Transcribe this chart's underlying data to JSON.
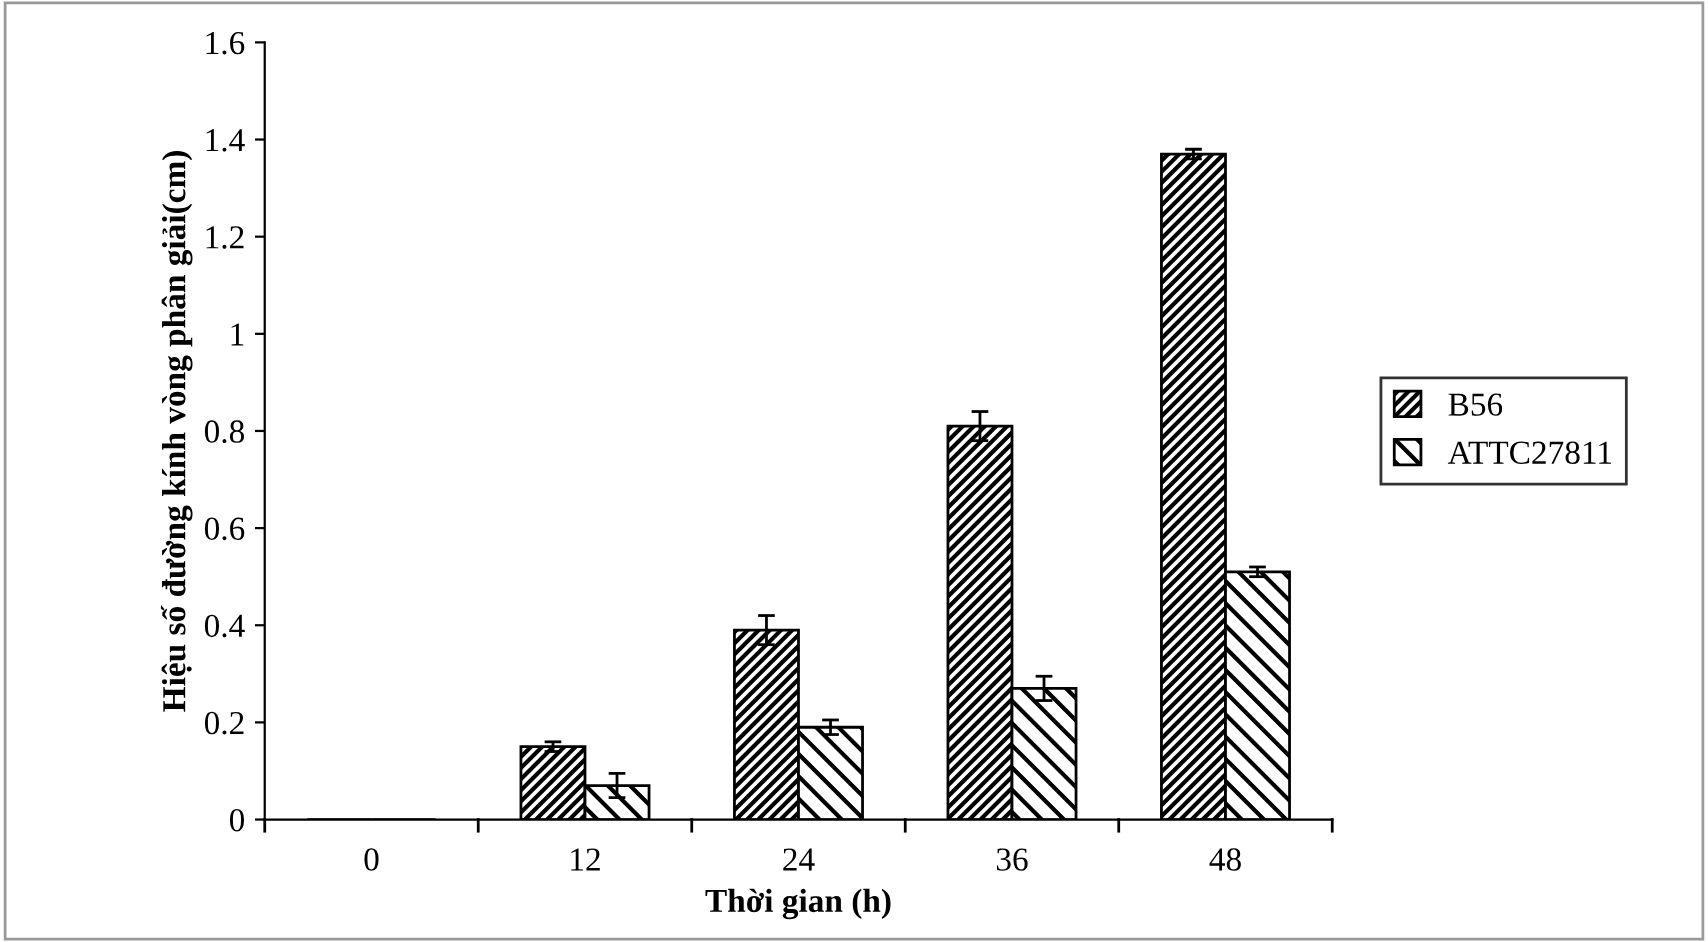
{
  "chart_data": {
    "type": "bar",
    "xlabel": "Thời gian (h)",
    "ylabel": "Hiệu số đường kính vòng phân giải(cm)",
    "categories": [
      "0",
      "12",
      "24",
      "36",
      "48"
    ],
    "series": [
      {
        "name": "B56",
        "color": "#000000",
        "values": [
          0,
          0.15,
          0.39,
          0.81,
          1.37
        ],
        "errors": [
          null,
          0.01,
          0.03,
          0.03,
          0.01
        ]
      },
      {
        "name": "ATTC27811",
        "color": "#000000",
        "values": [
          0,
          0.07,
          0.19,
          0.27,
          0.51
        ],
        "errors": [
          null,
          0.025,
          0.015,
          0.025,
          0.01
        ]
      }
    ],
    "ylim": [
      0,
      1.6
    ],
    "yticks": [
      0,
      0.2,
      0.4,
      0.6,
      0.8,
      1,
      1.2,
      1.4,
      1.6
    ],
    "grid": false,
    "legend": "right"
  }
}
